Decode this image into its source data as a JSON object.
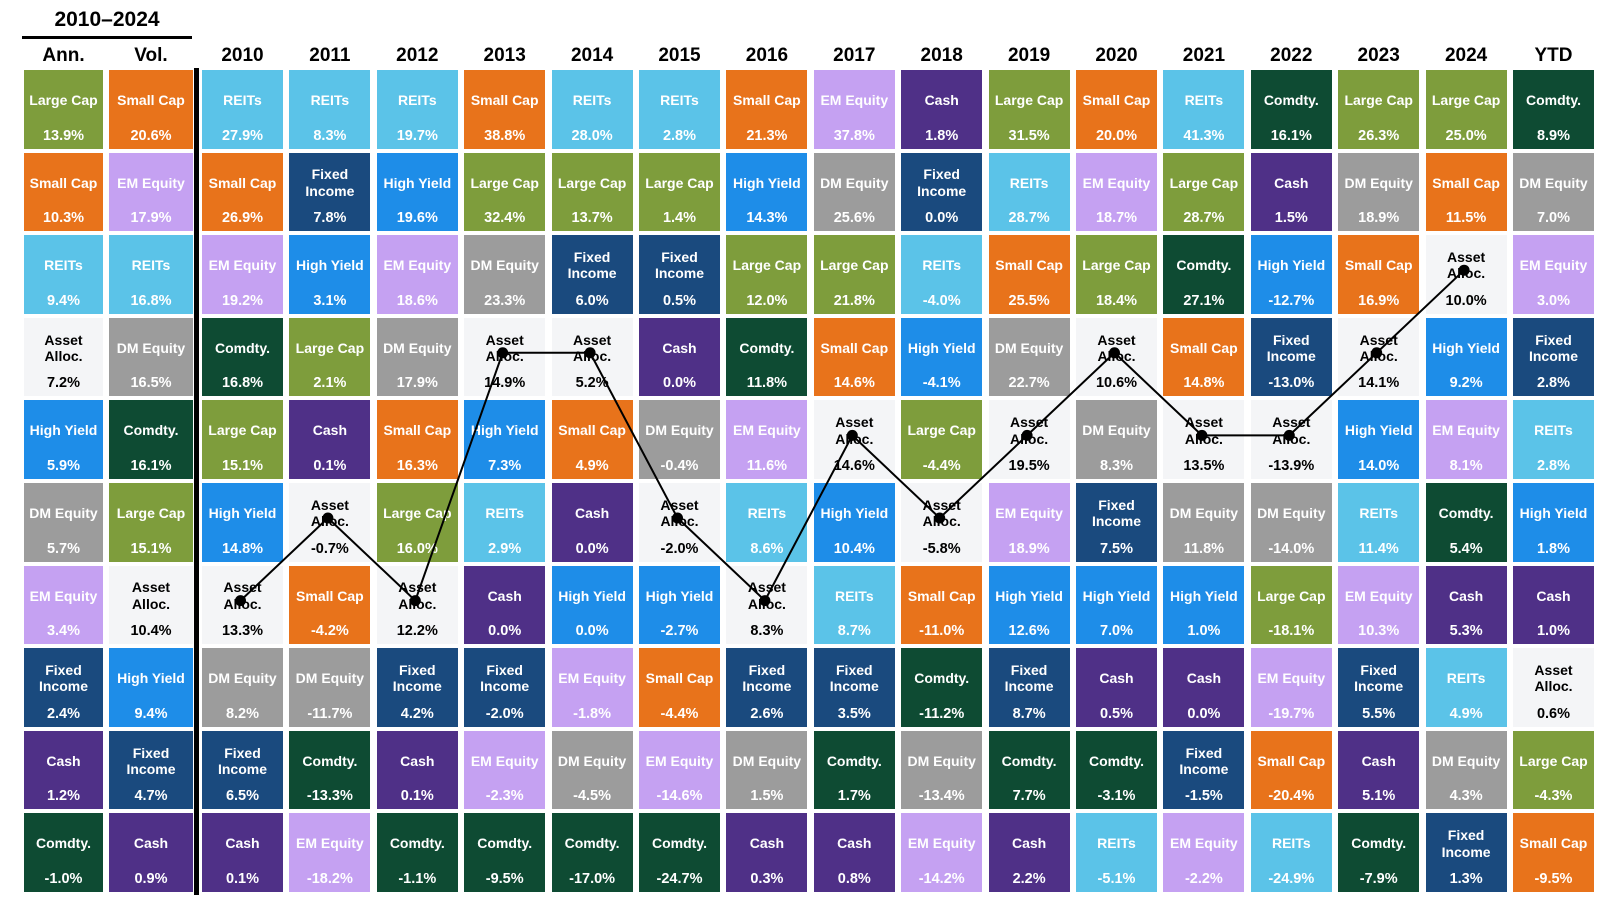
{
  "header": {
    "period_label": "2010–2024",
    "columns": [
      "Ann.",
      "Vol.",
      "2010",
      "2011",
      "2012",
      "2013",
      "2014",
      "2015",
      "2016",
      "2017",
      "2018",
      "2019",
      "2020",
      "2021",
      "2022",
      "2023",
      "2024",
      "YTD"
    ]
  },
  "asset_colors": {
    "Large Cap": {
      "bg": "#7E9D3C",
      "fg": "#FFFFFF"
    },
    "Small Cap": {
      "bg": "#E8731B",
      "fg": "#FFFFFF"
    },
    "REITs": {
      "bg": "#5BC3E8",
      "fg": "#FFFFFF"
    },
    "EM Equity": {
      "bg": "#C5A1F2",
      "fg": "#FFFFFF"
    },
    "DM Equity": {
      "bg": "#9C9C9C",
      "fg": "#FFFFFF"
    },
    "Fixed Income": {
      "bg": "#1A4A7E",
      "fg": "#FFFFFF"
    },
    "High Yield": {
      "bg": "#1E8DE8",
      "fg": "#FFFFFF"
    },
    "Comdty.": {
      "bg": "#0E4B33",
      "fg": "#FFFFFF"
    },
    "Cash": {
      "bg": "#4F3087",
      "fg": "#FFFFFF"
    },
    "Asset Alloc.": {
      "bg": "#F4F5F7",
      "fg": "#000000"
    }
  },
  "chart_data": {
    "type": "table",
    "title": "2010–2024 asset class returns quilt",
    "legend_position": "none",
    "line_overlay": {
      "series": "Asset Alloc.",
      "color": "#000000",
      "marker": "filled-circle",
      "columns": [
        "2010",
        "2011",
        "2012",
        "2013",
        "2014",
        "2015",
        "2016",
        "2017",
        "2018",
        "2019",
        "2020",
        "2021",
        "2022",
        "2023",
        "2024"
      ]
    },
    "columns": [
      {
        "label": "Ann.",
        "cells": [
          {
            "asset": "Large Cap",
            "value": "13.9%"
          },
          {
            "asset": "Small Cap",
            "value": "10.3%"
          },
          {
            "asset": "REITs",
            "value": "9.4%"
          },
          {
            "asset": "Asset Alloc.",
            "value": "7.2%"
          },
          {
            "asset": "High Yield",
            "value": "5.9%"
          },
          {
            "asset": "DM Equity",
            "value": "5.7%"
          },
          {
            "asset": "EM Equity",
            "value": "3.4%"
          },
          {
            "asset": "Fixed Income",
            "value": "2.4%"
          },
          {
            "asset": "Cash",
            "value": "1.2%"
          },
          {
            "asset": "Comdty.",
            "value": "-1.0%"
          }
        ]
      },
      {
        "label": "Vol.",
        "cells": [
          {
            "asset": "Small Cap",
            "value": "20.6%"
          },
          {
            "asset": "EM Equity",
            "value": "17.9%"
          },
          {
            "asset": "REITs",
            "value": "16.8%"
          },
          {
            "asset": "DM Equity",
            "value": "16.5%"
          },
          {
            "asset": "Comdty.",
            "value": "16.1%"
          },
          {
            "asset": "Large Cap",
            "value": "15.1%"
          },
          {
            "asset": "Asset Alloc.",
            "value": "10.4%"
          },
          {
            "asset": "High Yield",
            "value": "9.4%"
          },
          {
            "asset": "Fixed Income",
            "value": "4.7%"
          },
          {
            "asset": "Cash",
            "value": "0.9%"
          }
        ]
      },
      {
        "label": "2010",
        "cells": [
          {
            "asset": "REITs",
            "value": "27.9%"
          },
          {
            "asset": "Small Cap",
            "value": "26.9%"
          },
          {
            "asset": "EM Equity",
            "value": "19.2%"
          },
          {
            "asset": "Comdty.",
            "value": "16.8%"
          },
          {
            "asset": "Large Cap",
            "value": "15.1%"
          },
          {
            "asset": "High Yield",
            "value": "14.8%"
          },
          {
            "asset": "Asset Alloc.",
            "value": "13.3%"
          },
          {
            "asset": "DM Equity",
            "value": "8.2%"
          },
          {
            "asset": "Fixed Income",
            "value": "6.5%"
          },
          {
            "asset": "Cash",
            "value": "0.1%"
          }
        ]
      },
      {
        "label": "2011",
        "cells": [
          {
            "asset": "REITs",
            "value": "8.3%"
          },
          {
            "asset": "Fixed Income",
            "value": "7.8%"
          },
          {
            "asset": "High Yield",
            "value": "3.1%"
          },
          {
            "asset": "Large Cap",
            "value": "2.1%"
          },
          {
            "asset": "Cash",
            "value": "0.1%"
          },
          {
            "asset": "Asset Alloc.",
            "value": "-0.7%"
          },
          {
            "asset": "Small Cap",
            "value": "-4.2%"
          },
          {
            "asset": "DM Equity",
            "value": "-11.7%"
          },
          {
            "asset": "Comdty.",
            "value": "-13.3%"
          },
          {
            "asset": "EM Equity",
            "value": "-18.2%"
          }
        ]
      },
      {
        "label": "2012",
        "cells": [
          {
            "asset": "REITs",
            "value": "19.7%"
          },
          {
            "asset": "High Yield",
            "value": "19.6%"
          },
          {
            "asset": "EM Equity",
            "value": "18.6%"
          },
          {
            "asset": "DM Equity",
            "value": "17.9%"
          },
          {
            "asset": "Small Cap",
            "value": "16.3%"
          },
          {
            "asset": "Large Cap",
            "value": "16.0%"
          },
          {
            "asset": "Asset Alloc.",
            "value": "12.2%"
          },
          {
            "asset": "Fixed Income",
            "value": "4.2%"
          },
          {
            "asset": "Cash",
            "value": "0.1%"
          },
          {
            "asset": "Comdty.",
            "value": "-1.1%"
          }
        ]
      },
      {
        "label": "2013",
        "cells": [
          {
            "asset": "Small Cap",
            "value": "38.8%"
          },
          {
            "asset": "Large Cap",
            "value": "32.4%"
          },
          {
            "asset": "DM Equity",
            "value": "23.3%"
          },
          {
            "asset": "Asset Alloc.",
            "value": "14.9%"
          },
          {
            "asset": "High Yield",
            "value": "7.3%"
          },
          {
            "asset": "REITs",
            "value": "2.9%"
          },
          {
            "asset": "Cash",
            "value": "0.0%"
          },
          {
            "asset": "Fixed Income",
            "value": "-2.0%"
          },
          {
            "asset": "EM Equity",
            "value": "-2.3%"
          },
          {
            "asset": "Comdty.",
            "value": "-9.5%"
          }
        ]
      },
      {
        "label": "2014",
        "cells": [
          {
            "asset": "REITs",
            "value": "28.0%"
          },
          {
            "asset": "Large Cap",
            "value": "13.7%"
          },
          {
            "asset": "Fixed Income",
            "value": "6.0%"
          },
          {
            "asset": "Asset Alloc.",
            "value": "5.2%"
          },
          {
            "asset": "Small Cap",
            "value": "4.9%"
          },
          {
            "asset": "Cash",
            "value": "0.0%"
          },
          {
            "asset": "High Yield",
            "value": "0.0%"
          },
          {
            "asset": "EM Equity",
            "value": "-1.8%"
          },
          {
            "asset": "DM Equity",
            "value": "-4.5%"
          },
          {
            "asset": "Comdty.",
            "value": "-17.0%"
          }
        ]
      },
      {
        "label": "2015",
        "cells": [
          {
            "asset": "REITs",
            "value": "2.8%"
          },
          {
            "asset": "Large Cap",
            "value": "1.4%"
          },
          {
            "asset": "Fixed Income",
            "value": "0.5%"
          },
          {
            "asset": "Cash",
            "value": "0.0%"
          },
          {
            "asset": "DM Equity",
            "value": "-0.4%"
          },
          {
            "asset": "Asset Alloc.",
            "value": "-2.0%"
          },
          {
            "asset": "High Yield",
            "value": "-2.7%"
          },
          {
            "asset": "Small Cap",
            "value": "-4.4%"
          },
          {
            "asset": "EM Equity",
            "value": "-14.6%"
          },
          {
            "asset": "Comdty.",
            "value": "-24.7%"
          }
        ]
      },
      {
        "label": "2016",
        "cells": [
          {
            "asset": "Small Cap",
            "value": "21.3%"
          },
          {
            "asset": "High Yield",
            "value": "14.3%"
          },
          {
            "asset": "Large Cap",
            "value": "12.0%"
          },
          {
            "asset": "Comdty.",
            "value": "11.8%"
          },
          {
            "asset": "EM Equity",
            "value": "11.6%"
          },
          {
            "asset": "REITs",
            "value": "8.6%"
          },
          {
            "asset": "Asset Alloc.",
            "value": "8.3%"
          },
          {
            "asset": "Fixed Income",
            "value": "2.6%"
          },
          {
            "asset": "DM Equity",
            "value": "1.5%"
          },
          {
            "asset": "Cash",
            "value": "0.3%"
          }
        ]
      },
      {
        "label": "2017",
        "cells": [
          {
            "asset": "EM Equity",
            "value": "37.8%"
          },
          {
            "asset": "DM Equity",
            "value": "25.6%"
          },
          {
            "asset": "Large Cap",
            "value": "21.8%"
          },
          {
            "asset": "Small Cap",
            "value": "14.6%"
          },
          {
            "asset": "Asset Alloc.",
            "value": "14.6%"
          },
          {
            "asset": "High Yield",
            "value": "10.4%"
          },
          {
            "asset": "REITs",
            "value": "8.7%"
          },
          {
            "asset": "Fixed Income",
            "value": "3.5%"
          },
          {
            "asset": "Comdty.",
            "value": "1.7%"
          },
          {
            "asset": "Cash",
            "value": "0.8%"
          }
        ]
      },
      {
        "label": "2018",
        "cells": [
          {
            "asset": "Cash",
            "value": "1.8%"
          },
          {
            "asset": "Fixed Income",
            "value": "0.0%"
          },
          {
            "asset": "REITs",
            "value": "-4.0%"
          },
          {
            "asset": "High Yield",
            "value": "-4.1%"
          },
          {
            "asset": "Large Cap",
            "value": "-4.4%"
          },
          {
            "asset": "Asset Alloc.",
            "value": "-5.8%"
          },
          {
            "asset": "Small Cap",
            "value": "-11.0%"
          },
          {
            "asset": "Comdty.",
            "value": "-11.2%"
          },
          {
            "asset": "DM Equity",
            "value": "-13.4%"
          },
          {
            "asset": "EM Equity",
            "value": "-14.2%"
          }
        ]
      },
      {
        "label": "2019",
        "cells": [
          {
            "asset": "Large Cap",
            "value": "31.5%"
          },
          {
            "asset": "REITs",
            "value": "28.7%"
          },
          {
            "asset": "Small Cap",
            "value": "25.5%"
          },
          {
            "asset": "DM Equity",
            "value": "22.7%"
          },
          {
            "asset": "Asset Alloc.",
            "value": "19.5%"
          },
          {
            "asset": "EM Equity",
            "value": "18.9%"
          },
          {
            "asset": "High Yield",
            "value": "12.6%"
          },
          {
            "asset": "Fixed Income",
            "value": "8.7%"
          },
          {
            "asset": "Comdty.",
            "value": "7.7%"
          },
          {
            "asset": "Cash",
            "value": "2.2%"
          }
        ]
      },
      {
        "label": "2020",
        "cells": [
          {
            "asset": "Small Cap",
            "value": "20.0%"
          },
          {
            "asset": "EM Equity",
            "value": "18.7%"
          },
          {
            "asset": "Large Cap",
            "value": "18.4%"
          },
          {
            "asset": "Asset Alloc.",
            "value": "10.6%"
          },
          {
            "asset": "DM Equity",
            "value": "8.3%"
          },
          {
            "asset": "Fixed Income",
            "value": "7.5%"
          },
          {
            "asset": "High Yield",
            "value": "7.0%"
          },
          {
            "asset": "Cash",
            "value": "0.5%"
          },
          {
            "asset": "Comdty.",
            "value": "-3.1%"
          },
          {
            "asset": "REITs",
            "value": "-5.1%"
          }
        ]
      },
      {
        "label": "2021",
        "cells": [
          {
            "asset": "REITs",
            "value": "41.3%"
          },
          {
            "asset": "Large Cap",
            "value": "28.7%"
          },
          {
            "asset": "Comdty.",
            "value": "27.1%"
          },
          {
            "asset": "Small Cap",
            "value": "14.8%"
          },
          {
            "asset": "Asset Alloc.",
            "value": "13.5%"
          },
          {
            "asset": "DM Equity",
            "value": "11.8%"
          },
          {
            "asset": "High Yield",
            "value": "1.0%"
          },
          {
            "asset": "Cash",
            "value": "0.0%"
          },
          {
            "asset": "Fixed Income",
            "value": "-1.5%"
          },
          {
            "asset": "EM Equity",
            "value": "-2.2%"
          }
        ]
      },
      {
        "label": "2022",
        "cells": [
          {
            "asset": "Comdty.",
            "value": "16.1%"
          },
          {
            "asset": "Cash",
            "value": "1.5%"
          },
          {
            "asset": "High Yield",
            "value": "-12.7%"
          },
          {
            "asset": "Fixed Income",
            "value": "-13.0%"
          },
          {
            "asset": "Asset Alloc.",
            "value": "-13.9%"
          },
          {
            "asset": "DM Equity",
            "value": "-14.0%"
          },
          {
            "asset": "Large Cap",
            "value": "-18.1%"
          },
          {
            "asset": "EM Equity",
            "value": "-19.7%"
          },
          {
            "asset": "Small Cap",
            "value": "-20.4%"
          },
          {
            "asset": "REITs",
            "value": "-24.9%"
          }
        ]
      },
      {
        "label": "2023",
        "cells": [
          {
            "asset": "Large Cap",
            "value": "26.3%"
          },
          {
            "asset": "DM Equity",
            "value": "18.9%"
          },
          {
            "asset": "Small Cap",
            "value": "16.9%"
          },
          {
            "asset": "Asset Alloc.",
            "value": "14.1%"
          },
          {
            "asset": "High Yield",
            "value": "14.0%"
          },
          {
            "asset": "REITs",
            "value": "11.4%"
          },
          {
            "asset": "EM Equity",
            "value": "10.3%"
          },
          {
            "asset": "Fixed Income",
            "value": "5.5%"
          },
          {
            "asset": "Cash",
            "value": "5.1%"
          },
          {
            "asset": "Comdty.",
            "value": "-7.9%"
          }
        ]
      },
      {
        "label": "2024",
        "cells": [
          {
            "asset": "Large Cap",
            "value": "25.0%"
          },
          {
            "asset": "Small Cap",
            "value": "11.5%"
          },
          {
            "asset": "Asset Alloc.",
            "value": "10.0%"
          },
          {
            "asset": "High Yield",
            "value": "9.2%"
          },
          {
            "asset": "EM Equity",
            "value": "8.1%"
          },
          {
            "asset": "Comdty.",
            "value": "5.4%"
          },
          {
            "asset": "Cash",
            "value": "5.3%"
          },
          {
            "asset": "REITs",
            "value": "4.9%"
          },
          {
            "asset": "DM Equity",
            "value": "4.3%"
          },
          {
            "asset": "Fixed Income",
            "value": "1.3%"
          }
        ]
      },
      {
        "label": "YTD",
        "cells": [
          {
            "asset": "Comdty.",
            "value": "8.9%"
          },
          {
            "asset": "DM Equity",
            "value": "7.0%"
          },
          {
            "asset": "EM Equity",
            "value": "3.0%"
          },
          {
            "asset": "Fixed Income",
            "value": "2.8%"
          },
          {
            "asset": "REITs",
            "value": "2.8%"
          },
          {
            "asset": "High Yield",
            "value": "1.8%"
          },
          {
            "asset": "Cash",
            "value": "1.0%"
          },
          {
            "asset": "Asset Alloc.",
            "value": "0.6%"
          },
          {
            "asset": "Large Cap",
            "value": "-4.3%"
          },
          {
            "asset": "Small Cap",
            "value": "-9.5%"
          }
        ]
      }
    ]
  }
}
